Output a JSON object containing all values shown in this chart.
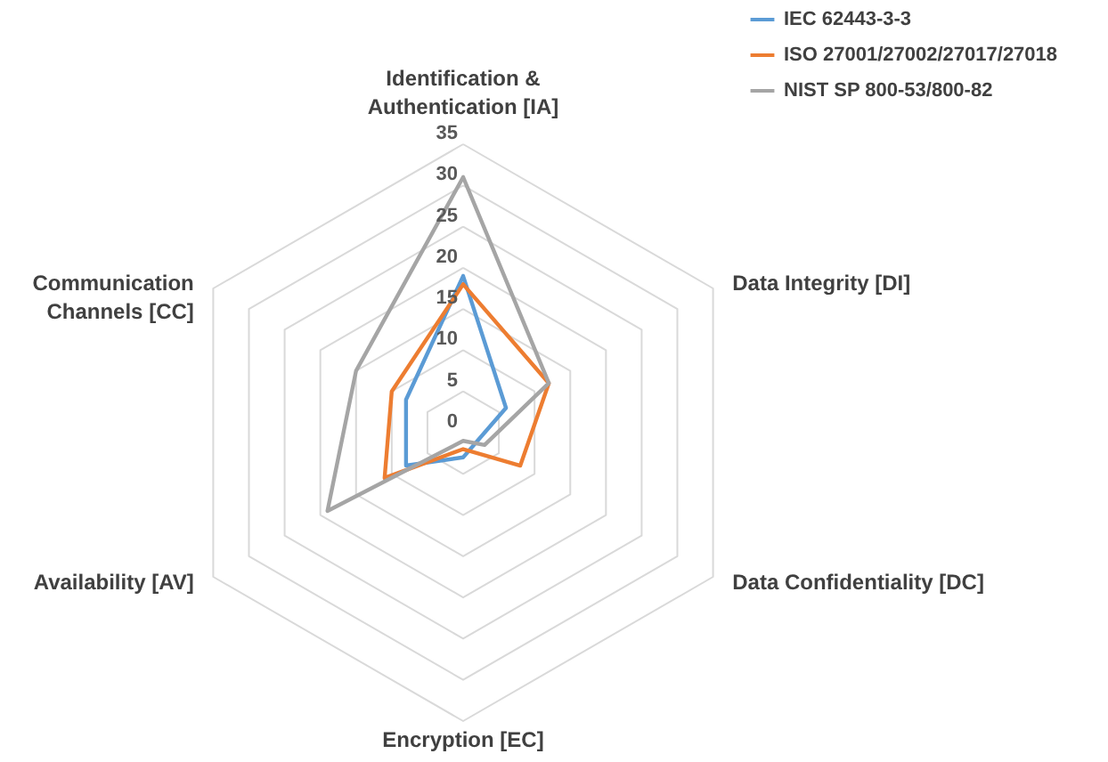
{
  "chart_data": {
    "type": "radar",
    "categories": [
      "Identification & Authentication [IA]",
      "Data Integrity [DI]",
      "Data Confidentiality [DC]",
      "Encryption [EC]",
      "Availability [AV]",
      "Communication Channels [CC]"
    ],
    "series": [
      {
        "name": "IEC 62443-3-3",
        "color": "#5b9bd5",
        "values": [
          19,
          6,
          2,
          3,
          8,
          8
        ]
      },
      {
        "name": "ISO 27001/27002/27017/27018",
        "color": "#ed7d31",
        "values": [
          18,
          12,
          8,
          2,
          11,
          10
        ]
      },
      {
        "name": "NIST SP 800-53/800-82",
        "color": "#a5a5a5",
        "values": [
          31,
          12,
          3,
          1,
          19,
          15
        ]
      }
    ],
    "ylim": [
      0,
      35
    ],
    "yticks": [
      0,
      5,
      10,
      15,
      20,
      25,
      30,
      35
    ],
    "grid": true,
    "legend": "top right"
  }
}
